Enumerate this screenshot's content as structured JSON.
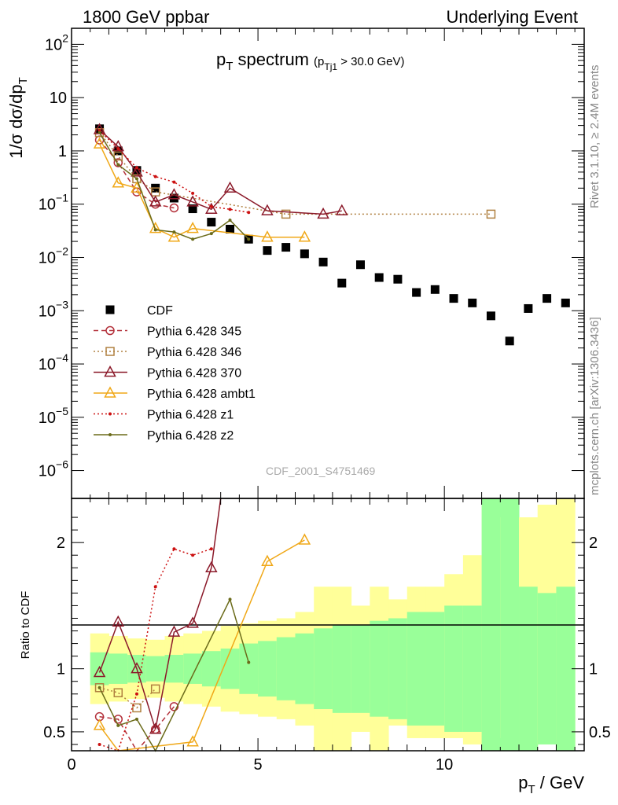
{
  "header": {
    "left": "1800 GeV ppbar",
    "right": "Underlying Event"
  },
  "side_labels": {
    "rivet": "Rivet 3.1.10, ≥ 2.4M events",
    "mcplots": "mcplots.cern.ch [arXiv:1306.3436]"
  },
  "watermark": "CDF_2001_S4751469",
  "chart_data": [
    {
      "type": "scatter",
      "panel": "main",
      "title_main": "p",
      "title_main_sub": "T",
      "title_main_rest": " spectrum",
      "title_cut_open": "(p",
      "title_cut_sub": "Tj1",
      "title_cut_rest": " > 30.0 GeV)",
      "ylabel": "1/σ dσ/dp",
      "ylabel_sub": "T",
      "yscale": "log",
      "xlim": [
        0,
        13.75
      ],
      "ylim": [
        3e-07,
        200
      ],
      "y_ticks": [
        {
          "value": 1e-06,
          "base": "10",
          "exp": "−6"
        },
        {
          "value": 1e-05,
          "base": "10",
          "exp": "−5"
        },
        {
          "value": 0.0001,
          "base": "10",
          "exp": "−4"
        },
        {
          "value": 0.001,
          "base": "10",
          "exp": "−3"
        },
        {
          "value": 0.01,
          "base": "10",
          "exp": "−2"
        },
        {
          "value": 0.1,
          "base": "10",
          "exp": "−1"
        },
        {
          "value": 1,
          "base": "1",
          "exp": ""
        },
        {
          "value": 10,
          "base": "10",
          "exp": ""
        },
        {
          "value": 100,
          "base": "10",
          "exp": "2"
        }
      ],
      "legend_position": "left-middle",
      "series": [
        {
          "name": "CDF",
          "color": "#000000",
          "marker": "filled-square",
          "line": "none",
          "x": [
            0.75,
            1.25,
            1.75,
            2.25,
            2.75,
            3.25,
            3.75,
            4.25,
            4.75,
            5.25,
            5.75,
            6.25,
            6.75,
            7.25,
            7.75,
            8.25,
            8.75,
            9.25,
            9.75,
            10.25,
            10.75,
            11.25,
            11.75,
            12.25,
            12.75,
            13.25
          ],
          "y": [
            2.6,
            1.0,
            0.43,
            0.2,
            0.13,
            0.082,
            0.046,
            0.034,
            0.022,
            0.0135,
            0.0155,
            0.0117,
            0.0082,
            0.0033,
            0.0073,
            0.0042,
            0.0039,
            0.0022,
            0.0025,
            0.0017,
            0.0014,
            0.0008,
            0.00027,
            0.0011,
            0.0017,
            0.0014
          ]
        },
        {
          "name": "Pythia 6.428 345",
          "color": "#b3303a",
          "marker": "open-circle",
          "line": "dashed",
          "x": [
            0.75,
            1.25,
            1.75,
            2.25,
            2.75
          ],
          "y": [
            1.6,
            0.6,
            0.17,
            0.1,
            0.085
          ]
        },
        {
          "name": "Pythia 6.428 346",
          "color": "#b08040",
          "marker": "open-square",
          "line": "dotted",
          "x": [
            0.75,
            1.25,
            1.75,
            2.25,
            5.75,
            11.25
          ],
          "y": [
            2.2,
            0.8,
            0.3,
            0.17,
            0.065,
            0.065
          ]
        },
        {
          "name": "Pythia 6.428 370",
          "color": "#8b1a2a",
          "marker": "open-triangle",
          "line": "solid",
          "x": [
            0.75,
            1.25,
            1.75,
            2.25,
            2.75,
            3.25,
            3.75,
            4.25,
            5.25,
            6.75,
            7.25
          ],
          "y": [
            2.5,
            1.2,
            0.4,
            0.11,
            0.15,
            0.11,
            0.08,
            0.2,
            0.075,
            0.065,
            0.075
          ]
        },
        {
          "name": "Pythia 6.428 ambt1",
          "color": "#f0a818",
          "marker": "open-triangle",
          "line": "solid",
          "x": [
            0.75,
            1.25,
            1.75,
            2.25,
            2.75,
            3.25,
            5.25,
            6.25
          ],
          "y": [
            1.35,
            0.25,
            0.2,
            0.035,
            0.024,
            0.035,
            0.024,
            0.024
          ]
        },
        {
          "name": "Pythia 6.428 z1",
          "color": "#cc1111",
          "marker": "dot",
          "line": "dotted",
          "x": [
            0.75,
            1.25,
            1.75,
            2.25,
            2.75,
            3.25,
            3.75,
            4.25,
            4.75
          ],
          "y": [
            2.4,
            1.1,
            0.48,
            0.33,
            0.26,
            0.16,
            0.09,
            0.08,
            0.07
          ]
        },
        {
          "name": "Pythia 6.428 z2",
          "color": "#6b6b1a",
          "marker": "dot",
          "line": "solid",
          "x": [
            0.75,
            1.25,
            1.75,
            2.25,
            2.75,
            3.25,
            3.75,
            4.25,
            4.75
          ],
          "y": [
            2.2,
            0.55,
            0.3,
            0.033,
            0.03,
            0.022,
            0.028,
            0.05,
            0.022
          ]
        }
      ]
    },
    {
      "type": "line",
      "panel": "ratio",
      "ylabel": "Ratio to CDF",
      "xlabel_base": "p",
      "xlabel_sub": "T",
      "xlabel_rest": " / GeV",
      "xlim": [
        0,
        13.75
      ],
      "ylim": [
        0.35,
        2.35
      ],
      "x_ticks": [
        {
          "value": 0,
          "label": "0"
        },
        {
          "value": 5,
          "label": "5"
        },
        {
          "value": 10,
          "label": "10"
        }
      ],
      "y_ticks": [
        {
          "value": 0.5,
          "label": "0.5"
        },
        {
          "value": 1,
          "label": "1"
        },
        {
          "value": 2,
          "label": "2"
        }
      ],
      "bands": {
        "x_edges": [
          0.5,
          1.0,
          1.5,
          2.0,
          2.5,
          3.0,
          3.5,
          4.0,
          4.5,
          5.0,
          5.5,
          6.0,
          6.5,
          7.0,
          7.5,
          8.0,
          8.5,
          9.0,
          9.5,
          10.0,
          10.5,
          11.0,
          11.5,
          12.0,
          12.5,
          13.0,
          13.5
        ],
        "yellow_lo": [
          0.72,
          0.74,
          0.76,
          0.77,
          0.74,
          0.72,
          0.7,
          0.66,
          0.64,
          0.62,
          0.6,
          0.55,
          0.35,
          0.35,
          0.5,
          0.35,
          0.55,
          0.45,
          0.45,
          0.45,
          0.4,
          0.35,
          0.45,
          0.35,
          0.4,
          0.35
        ],
        "green_lo": [
          0.87,
          0.88,
          0.89,
          0.9,
          0.89,
          0.88,
          0.86,
          0.84,
          0.8,
          0.78,
          0.75,
          0.72,
          0.68,
          0.65,
          0.65,
          0.62,
          0.6,
          0.55,
          0.55,
          0.5,
          0.5,
          0.35,
          0.35,
          0.35,
          0.4,
          0.35
        ],
        "green_hi": [
          1.13,
          1.12,
          1.11,
          1.1,
          1.11,
          1.12,
          1.14,
          1.16,
          1.2,
          1.22,
          1.25,
          1.28,
          1.32,
          1.35,
          1.35,
          1.38,
          1.4,
          1.45,
          1.45,
          1.5,
          1.5,
          2.35,
          2.35,
          1.65,
          1.6,
          1.65
        ],
        "yellow_hi": [
          1.28,
          1.26,
          1.24,
          1.23,
          1.26,
          1.28,
          1.3,
          1.34,
          1.36,
          1.38,
          1.4,
          1.45,
          1.65,
          1.65,
          1.5,
          1.65,
          1.55,
          1.65,
          1.65,
          1.75,
          1.9,
          2.35,
          2.2,
          2.2,
          2.3,
          2.35
        ]
      },
      "series": [
        {
          "name": "Pythia 6.428 345",
          "x": [
            0.75,
            1.25,
            1.75,
            2.25,
            2.75
          ],
          "y": [
            0.62,
            0.6,
            0.3,
            0.52,
            0.7
          ]
        },
        {
          "name": "Pythia 6.428 346",
          "x": [
            0.75,
            1.25,
            1.75,
            2.25
          ],
          "y": [
            0.85,
            0.81,
            0.69,
            0.84
          ]
        },
        {
          "name": "Pythia 6.428 370",
          "x": [
            0.75,
            1.25,
            1.75,
            2.25,
            2.75,
            3.25,
            3.75,
            4.0
          ],
          "y": [
            0.97,
            1.37,
            1.0,
            0.52,
            1.29,
            1.36,
            1.8,
            2.35
          ]
        },
        {
          "name": "Pythia 6.428 ambt1",
          "x": [
            0.75,
            1.25,
            3.25,
            5.25,
            6.25
          ],
          "y": [
            0.55,
            0.25,
            0.42,
            1.85,
            2.02
          ]
        },
        {
          "name": "Pythia 6.428 z1",
          "x": [
            0.75,
            1.25,
            1.75,
            2.25,
            2.75,
            3.25,
            3.75
          ],
          "y": [
            0.4,
            0.3,
            0.8,
            1.65,
            1.95,
            1.9,
            1.95
          ]
        },
        {
          "name": "Pythia 6.428 z2",
          "x": [
            0.75,
            1.25,
            1.75,
            2.25,
            4.25,
            4.75
          ],
          "y": [
            0.85,
            0.55,
            0.6,
            0.3,
            1.55,
            1.05
          ]
        }
      ]
    }
  ]
}
